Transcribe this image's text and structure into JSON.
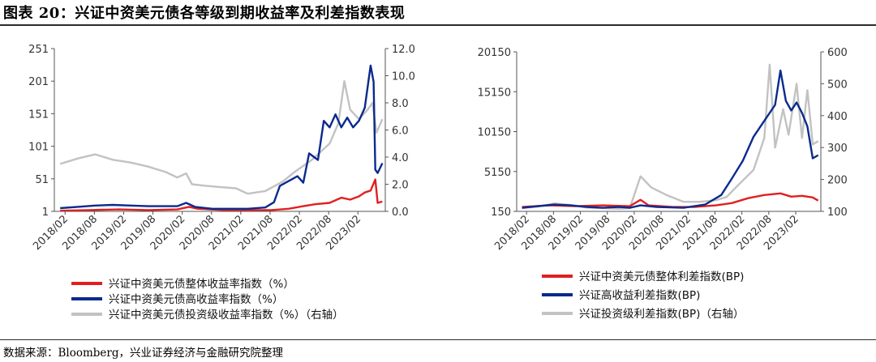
{
  "header": {
    "title": "图表 20：兴证中资美元债各等级到期收益率及利差指数表现"
  },
  "footer": {
    "source": "数据来源：Bloomberg，兴业证券经济与金融研究院整理"
  },
  "colors": {
    "red": "#e02020",
    "navy": "#0a2a8c",
    "gray": "#c2c2c2",
    "axis": "#555555"
  },
  "chart_data": [
    {
      "type": "line",
      "title": "",
      "xlabel": "",
      "ylabel": "",
      "x_ticks": [
        "2018/02",
        "2018/08",
        "2019/02",
        "2019/08",
        "2020/02",
        "2020/08",
        "2021/02",
        "2021/08",
        "2022/02",
        "2022/08",
        "2023/02"
      ],
      "x_range": [
        2017.9,
        2023.55
      ],
      "y_left": {
        "range": [
          1,
          251
        ],
        "ticks": [
          "1",
          "51",
          "101",
          "151",
          "201",
          "251"
        ]
      },
      "y_right": {
        "range": [
          0,
          12
        ],
        "ticks": [
          "0.0",
          "2.0",
          "4.0",
          "6.0",
          "8.0",
          "10.0",
          "12.0"
        ]
      },
      "grid": false,
      "legend_position": "bottom",
      "series": [
        {
          "name": "兴证中资美元债整体收益率指数（%）",
          "axis": "left",
          "color": "#e02020",
          "points": [
            [
              2018.0,
              2
            ],
            [
              2018.5,
              3
            ],
            [
              2019.0,
              4
            ],
            [
              2019.5,
              3
            ],
            [
              2020.0,
              4
            ],
            [
              2020.2,
              8
            ],
            [
              2020.35,
              5
            ],
            [
              2020.8,
              3
            ],
            [
              2021.0,
              3
            ],
            [
              2021.6,
              3
            ],
            [
              2021.9,
              5
            ],
            [
              2022.15,
              9
            ],
            [
              2022.35,
              12
            ],
            [
              2022.6,
              14
            ],
            [
              2022.8,
              22
            ],
            [
              2022.95,
              19
            ],
            [
              2023.1,
              24
            ],
            [
              2023.2,
              30
            ],
            [
              2023.3,
              33
            ],
            [
              2023.38,
              50
            ],
            [
              2023.42,
              14
            ],
            [
              2023.5,
              16
            ]
          ]
        },
        {
          "name": "兴证中资美元债高收益率指数（%）",
          "axis": "left",
          "color": "#0a2a8c",
          "points": [
            [
              2018.0,
              6
            ],
            [
              2018.3,
              8
            ],
            [
              2018.6,
              10
            ],
            [
              2018.9,
              11
            ],
            [
              2019.2,
              10
            ],
            [
              2019.5,
              9
            ],
            [
              2019.8,
              9
            ],
            [
              2020.0,
              9
            ],
            [
              2020.15,
              14
            ],
            [
              2020.3,
              8
            ],
            [
              2020.6,
              5
            ],
            [
              2020.9,
              5
            ],
            [
              2021.2,
              5
            ],
            [
              2021.5,
              7
            ],
            [
              2021.65,
              15
            ],
            [
              2021.75,
              40
            ],
            [
              2021.85,
              45
            ],
            [
              2021.95,
              50
            ],
            [
              2022.05,
              55
            ],
            [
              2022.15,
              45
            ],
            [
              2022.25,
              90
            ],
            [
              2022.4,
              80
            ],
            [
              2022.5,
              140
            ],
            [
              2022.6,
              130
            ],
            [
              2022.7,
              150
            ],
            [
              2022.8,
              130
            ],
            [
              2022.9,
              145
            ],
            [
              2023.0,
              130
            ],
            [
              2023.1,
              140
            ],
            [
              2023.2,
              160
            ],
            [
              2023.3,
              225
            ],
            [
              2023.35,
              200
            ],
            [
              2023.38,
              65
            ],
            [
              2023.42,
              60
            ],
            [
              2023.5,
              75
            ]
          ]
        },
        {
          "name": "兴证中资美元债投资级收益率指数（%）（右轴）",
          "axis": "right",
          "color": "#c2c2c2",
          "points": [
            [
              2018.0,
              3.5
            ],
            [
              2018.3,
              3.9
            ],
            [
              2018.6,
              4.2
            ],
            [
              2018.9,
              3.8
            ],
            [
              2019.2,
              3.6
            ],
            [
              2019.5,
              3.3
            ],
            [
              2019.8,
              2.9
            ],
            [
              2020.0,
              2.5
            ],
            [
              2020.15,
              2.8
            ],
            [
              2020.25,
              2.0
            ],
            [
              2020.45,
              1.9
            ],
            [
              2020.7,
              1.8
            ],
            [
              2021.0,
              1.7
            ],
            [
              2021.2,
              1.3
            ],
            [
              2021.5,
              1.5
            ],
            [
              2021.8,
              2.2
            ],
            [
              2022.0,
              2.9
            ],
            [
              2022.3,
              3.8
            ],
            [
              2022.6,
              5.0
            ],
            [
              2022.75,
              6.5
            ],
            [
              2022.85,
              9.6
            ],
            [
              2022.95,
              7.5
            ],
            [
              2023.1,
              6.8
            ],
            [
              2023.25,
              7.5
            ],
            [
              2023.33,
              8.0
            ],
            [
              2023.4,
              5.8
            ],
            [
              2023.5,
              6.8
            ]
          ]
        }
      ]
    },
    {
      "type": "line",
      "title": "",
      "xlabel": "",
      "ylabel": "",
      "x_ticks": [
        "2018/02",
        "2018/08",
        "2019/02",
        "2019/08",
        "2020/02",
        "2020/08",
        "2021/02",
        "2021/08",
        "2022/02",
        "2022/08",
        "2023/02"
      ],
      "x_range": [
        2017.9,
        2023.55
      ],
      "y_left": {
        "range": [
          150,
          20150
        ],
        "ticks": [
          "150",
          "5150",
          "10150",
          "15150",
          "20150"
        ]
      },
      "y_right": {
        "range": [
          100,
          600
        ],
        "ticks": [
          "100",
          "200",
          "300",
          "400",
          "500",
          "600"
        ]
      },
      "grid": false,
      "legend_position": "bottom",
      "series": [
        {
          "name": "兴证中资美元债整体利差指数(BP)",
          "axis": "left",
          "color": "#e02020",
          "points": [
            [
              2018.0,
              700
            ],
            [
              2018.5,
              900
            ],
            [
              2019.0,
              800
            ],
            [
              2019.5,
              900
            ],
            [
              2020.0,
              800
            ],
            [
              2020.2,
              1600
            ],
            [
              2020.35,
              900
            ],
            [
              2020.8,
              700
            ],
            [
              2021.2,
              700
            ],
            [
              2021.6,
              900
            ],
            [
              2021.9,
              1200
            ],
            [
              2022.2,
              1800
            ],
            [
              2022.5,
              2200
            ],
            [
              2022.8,
              2400
            ],
            [
              2023.0,
              2000
            ],
            [
              2023.2,
              2100
            ],
            [
              2023.4,
              1900
            ],
            [
              2023.5,
              1500
            ]
          ]
        },
        {
          "name": "兴证高收益利差指数(BP)",
          "axis": "left",
          "color": "#0a2a8c",
          "points": [
            [
              2018.0,
              600
            ],
            [
              2018.3,
              800
            ],
            [
              2018.6,
              1000
            ],
            [
              2018.9,
              900
            ],
            [
              2019.2,
              700
            ],
            [
              2019.5,
              600
            ],
            [
              2019.8,
              700
            ],
            [
              2020.0,
              600
            ],
            [
              2020.2,
              900
            ],
            [
              2020.5,
              700
            ],
            [
              2021.0,
              600
            ],
            [
              2021.4,
              1000
            ],
            [
              2021.7,
              2200
            ],
            [
              2021.9,
              4300
            ],
            [
              2022.1,
              6500
            ],
            [
              2022.3,
              9500
            ],
            [
              2022.5,
              11500
            ],
            [
              2022.7,
              13500
            ],
            [
              2022.8,
              17800
            ],
            [
              2022.9,
              14000
            ],
            [
              2023.0,
              12800
            ],
            [
              2023.1,
              13800
            ],
            [
              2023.2,
              12500
            ],
            [
              2023.3,
              10800
            ],
            [
              2023.4,
              6800
            ],
            [
              2023.5,
              7200
            ]
          ]
        },
        {
          "name": "兴证投资级利差指数(BP)（右轴）",
          "axis": "right",
          "color": "#c2c2c2",
          "points": [
            [
              2018.0,
              110
            ],
            [
              2018.3,
              115
            ],
            [
              2018.6,
              125
            ],
            [
              2018.9,
              120
            ],
            [
              2019.2,
              112
            ],
            [
              2019.5,
              110
            ],
            [
              2019.8,
              108
            ],
            [
              2020.0,
              110
            ],
            [
              2020.2,
              210
            ],
            [
              2020.4,
              175
            ],
            [
              2020.7,
              150
            ],
            [
              2021.0,
              130
            ],
            [
              2021.3,
              130
            ],
            [
              2021.6,
              135
            ],
            [
              2021.8,
              145
            ],
            [
              2022.0,
              180
            ],
            [
              2022.3,
              230
            ],
            [
              2022.5,
              330
            ],
            [
              2022.6,
              560
            ],
            [
              2022.7,
              300
            ],
            [
              2022.85,
              420
            ],
            [
              2022.95,
              340
            ],
            [
              2023.1,
              500
            ],
            [
              2023.2,
              330
            ],
            [
              2023.3,
              480
            ],
            [
              2023.4,
              310
            ],
            [
              2023.5,
              320
            ]
          ]
        }
      ]
    }
  ]
}
